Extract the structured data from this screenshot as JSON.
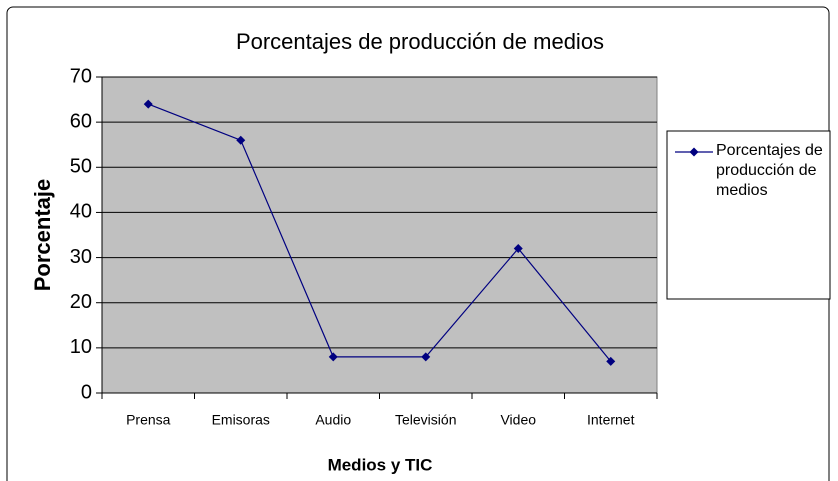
{
  "chart_data": {
    "type": "line",
    "title": "Porcentajes de producción de medios",
    "x_label": "Medios y TIC",
    "y_label": "Porcentaje",
    "categories": [
      "Prensa",
      "Emisoras",
      "Audio",
      "Televisión",
      "Video",
      "Internet"
    ],
    "series": [
      {
        "name": "Porcentajes de producción de medios",
        "color": "#000080",
        "values": [
          64,
          56,
          8,
          8,
          32,
          7
        ]
      }
    ],
    "ylim": [
      0,
      70
    ],
    "yticks": [
      0,
      10,
      20,
      30,
      40,
      50,
      60,
      70
    ],
    "grid": true,
    "legend": "right"
  }
}
